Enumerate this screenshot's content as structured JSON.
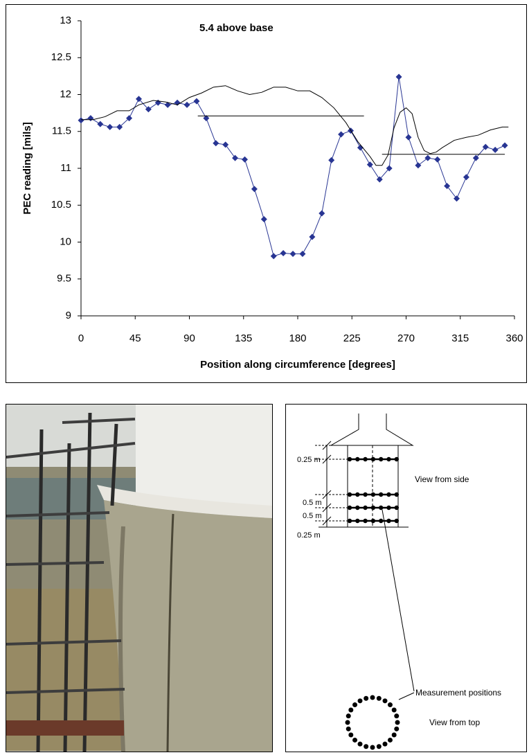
{
  "chart_data": {
    "type": "line",
    "annotation": "5.4 above base",
    "xlabel": "Position along circumference [degrees]",
    "ylabel": "PEC reading [mils]",
    "xlim": [
      0,
      360
    ],
    "xticks": [
      0,
      45,
      90,
      135,
      180,
      225,
      270,
      315,
      360
    ],
    "ylim": [
      9,
      13
    ],
    "yticks": [
      9,
      9.5,
      10,
      10.5,
      11,
      11.5,
      12,
      12.5,
      13
    ],
    "series": [
      {
        "color": "#283593",
        "marker": "diamond",
        "x": [
          0,
          8,
          16,
          24,
          32,
          40,
          48,
          56,
          64,
          72,
          80,
          88,
          96,
          104,
          112,
          120,
          128,
          136,
          144,
          152,
          160,
          168,
          176,
          184,
          192,
          200,
          208,
          216,
          224,
          232,
          240,
          248,
          256,
          264,
          272,
          280,
          288,
          296,
          304,
          312,
          320,
          328,
          336,
          344,
          352
        ],
        "values": [
          11.65,
          11.68,
          11.6,
          11.56,
          11.56,
          11.68,
          11.94,
          11.8,
          11.89,
          11.86,
          11.89,
          11.86,
          11.91,
          11.68,
          11.34,
          11.32,
          11.14,
          11.12,
          10.72,
          10.31,
          9.81,
          9.85,
          9.84,
          9.84,
          10.07,
          10.39,
          11.11,
          11.46,
          11.51,
          11.28,
          11.05,
          10.85,
          11.0,
          12.24,
          11.42,
          11.04,
          11.14,
          11.12,
          10.76,
          10.59,
          10.88,
          11.14,
          11.29,
          11.25,
          11.31
        ]
      },
      {
        "color": "#000000",
        "x": [
          0,
          10,
          20,
          30,
          40,
          48,
          60,
          70,
          80,
          90,
          100,
          110,
          120,
          130,
          140,
          150,
          160,
          170,
          180,
          190,
          200,
          210,
          220,
          230,
          240,
          245,
          250,
          255,
          260,
          265,
          270,
          275,
          280,
          285,
          290,
          295,
          300,
          310,
          320,
          330,
          340,
          350,
          355
        ],
        "values": [
          11.66,
          11.66,
          11.7,
          11.78,
          11.78,
          11.86,
          11.92,
          11.9,
          11.86,
          11.96,
          12.02,
          12.1,
          12.12,
          12.05,
          12.0,
          12.03,
          12.1,
          12.1,
          12.05,
          12.05,
          11.96,
          11.82,
          11.62,
          11.36,
          11.16,
          11.04,
          11.04,
          11.18,
          11.55,
          11.76,
          11.82,
          11.74,
          11.42,
          11.24,
          11.2,
          11.22,
          11.28,
          11.38,
          11.42,
          11.45,
          11.52,
          11.56,
          11.56
        ]
      },
      {
        "color": "#000000",
        "x": [
          97,
          235
        ],
        "values": [
          11.71,
          11.71
        ]
      },
      {
        "color": "#000000",
        "x": [
          250,
          352
        ],
        "values": [
          11.19,
          11.19
        ]
      }
    ]
  },
  "diagram": {
    "dimensions": [
      "0.25 m",
      "0.5 m",
      "0.5 m",
      "0.25 m"
    ],
    "side_label": "View from side",
    "positions_label": "Measurement positions",
    "top_label": "View from top"
  }
}
